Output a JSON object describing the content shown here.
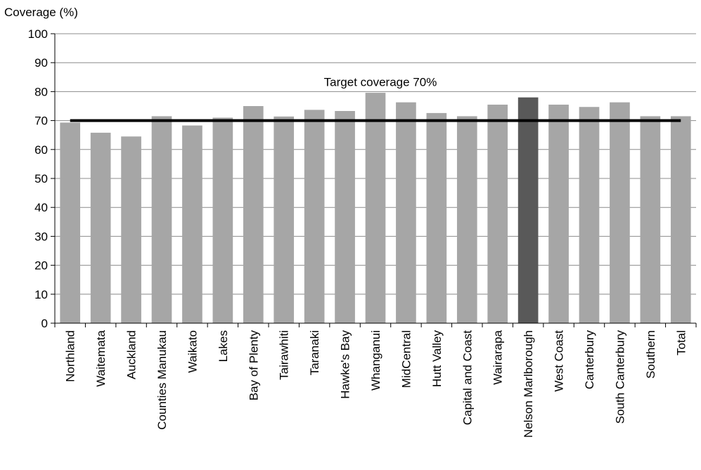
{
  "chart_data": {
    "type": "bar",
    "ylabel": "Coverage (%)",
    "xlabel": "",
    "ylim": [
      0,
      100
    ],
    "yticks": [
      0,
      10,
      20,
      30,
      40,
      50,
      60,
      70,
      80,
      90,
      100
    ],
    "grid": true,
    "categories": [
      "Northland",
      "Waitemata",
      "Auckland",
      "Counties Manukau",
      "Waikato",
      "Lakes",
      "Bay of Plenty",
      "Tairawhiti",
      "Taranaki",
      "Hawke's Bay",
      "Whanganui",
      "MidCentral",
      "Hutt Valley",
      "Capital and Coast",
      "Wairarapa",
      "Nelson Marlborough",
      "West Coast",
      "Canterbury",
      "South Canterbury",
      "Southern",
      "Total"
    ],
    "values": [
      69.3,
      65.8,
      64.5,
      71.5,
      68.3,
      71.0,
      75.0,
      71.4,
      73.7,
      73.3,
      79.6,
      76.3,
      72.6,
      71.5,
      75.5,
      78.0,
      75.5,
      74.7,
      76.3,
      71.5,
      71.5
    ],
    "highlight": "Nelson Marlborough",
    "bar_color": "#a6a6a6",
    "highlight_color": "#595959",
    "target": {
      "value": 70,
      "label": "Target coverage 70%",
      "color": "#000000"
    }
  }
}
